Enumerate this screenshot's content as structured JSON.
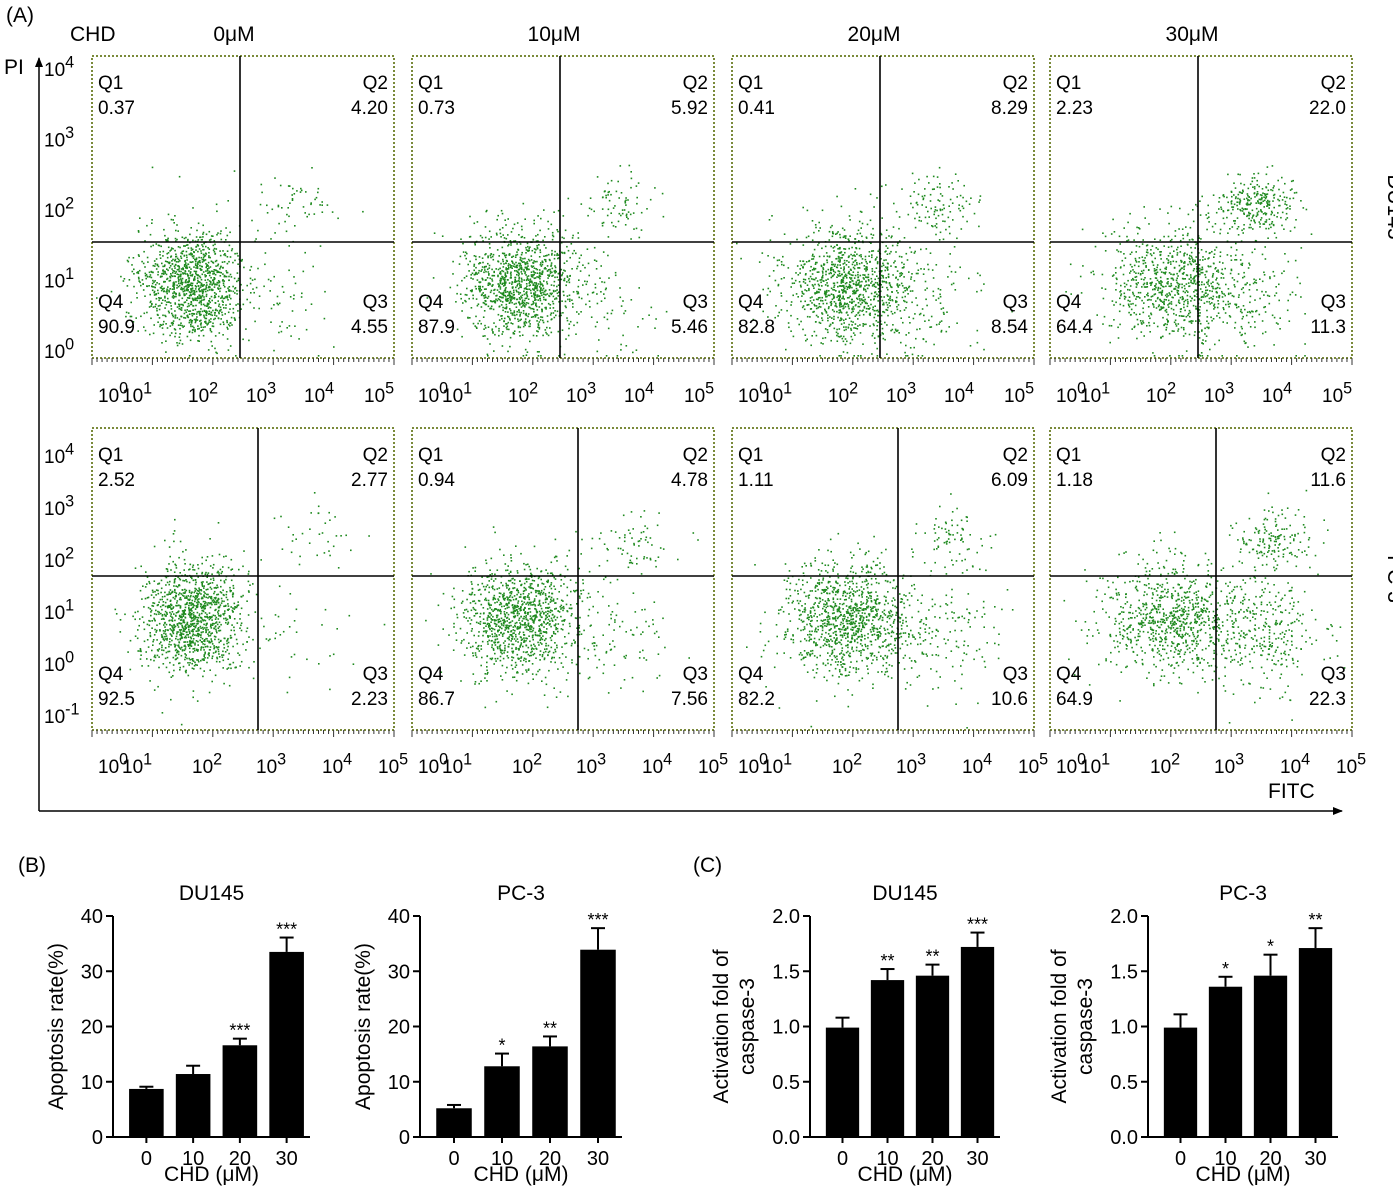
{
  "panel_labels": {
    "A": "(A)",
    "B": "(B)",
    "C": "(C)"
  },
  "flow": {
    "treatment_label": "CHD",
    "y_axis_label": "PI",
    "x_axis_label": "FITC",
    "concentrations": [
      "0μM",
      "10μM",
      "20μM",
      "30μM"
    ],
    "cell_lines": [
      "DU145",
      "PC-3"
    ],
    "quadrant_names": [
      "Q1",
      "Q2",
      "Q3",
      "Q4"
    ],
    "x_ticks": [
      "10^0",
      "10^1",
      "10^2",
      "10^3",
      "10^4",
      "10^5"
    ],
    "y_ticks_du145": [
      "10^4",
      "10^3",
      "10^2",
      "10^1",
      "10^0"
    ],
    "y_ticks_pc3": [
      "10^4",
      "10^3",
      "10^2",
      "10^1",
      "10^0",
      "10^-1"
    ],
    "dot_color": "#1f8a1f",
    "frame_color": "#7a8a3a"
  },
  "chart_data": [
    {
      "type": "scatter",
      "subtype": "flow-cytometry-quadrants",
      "cell_line": "DU145",
      "panels": [
        {
          "concentration": "0μM",
          "Q1": "0.37",
          "Q2": "4.20",
          "Q3": "4.55",
          "Q4": "90.9"
        },
        {
          "concentration": "10μM",
          "Q1": "0.73",
          "Q2": "5.92",
          "Q3": "5.46",
          "Q4": "87.9"
        },
        {
          "concentration": "20μM",
          "Q1": "0.41",
          "Q2": "8.29",
          "Q3": "8.54",
          "Q4": "82.8"
        },
        {
          "concentration": "30μM",
          "Q1": "2.23",
          "Q2": "22.0",
          "Q3": "11.3",
          "Q4": "64.4"
        }
      ]
    },
    {
      "type": "scatter",
      "subtype": "flow-cytometry-quadrants",
      "cell_line": "PC-3",
      "panels": [
        {
          "concentration": "0μM",
          "Q1": "2.52",
          "Q2": "2.77",
          "Q3": "2.23",
          "Q4": "92.5"
        },
        {
          "concentration": "10μM",
          "Q1": "0.94",
          "Q2": "4.78",
          "Q3": "7.56",
          "Q4": "86.7"
        },
        {
          "concentration": "20μM",
          "Q1": "1.11",
          "Q2": "6.09",
          "Q3": "10.6",
          "Q4": "82.2"
        },
        {
          "concentration": "30μM",
          "Q1": "1.18",
          "Q2": "11.6",
          "Q3": "22.3",
          "Q4": "64.9"
        }
      ]
    },
    {
      "type": "bar",
      "panel": "B",
      "title": "DU145",
      "xlabel": "CHD (μM)",
      "ylabel": "Apoptosis rate(%)",
      "categories": [
        "0",
        "10",
        "20",
        "30"
      ],
      "values": [
        8.7,
        11.4,
        16.6,
        33.5
      ],
      "errors": [
        0.4,
        1.5,
        1.2,
        2.6
      ],
      "significance": [
        "",
        "",
        "***",
        "***"
      ],
      "ylim": [
        0,
        40
      ],
      "yticks": [
        "0",
        "10",
        "20",
        "30",
        "40"
      ]
    },
    {
      "type": "bar",
      "panel": "B",
      "title": "PC-3",
      "xlabel": "CHD (μM)",
      "ylabel": "Apoptosis rate(%)",
      "categories": [
        "0",
        "10",
        "20",
        "30"
      ],
      "values": [
        5.2,
        12.8,
        16.4,
        33.9
      ],
      "errors": [
        0.6,
        2.3,
        1.8,
        3.9
      ],
      "significance": [
        "",
        "*",
        "**",
        "***"
      ],
      "ylim": [
        0,
        40
      ],
      "yticks": [
        "0",
        "10",
        "20",
        "30",
        "40"
      ]
    },
    {
      "type": "bar",
      "panel": "C",
      "title": "DU145",
      "xlabel": "CHD (μM)",
      "ylabel": "Activation fold of caspase-3",
      "ylabel_lines": [
        "Activation fold of",
        "caspase-3"
      ],
      "categories": [
        "0",
        "10",
        "20",
        "30"
      ],
      "values": [
        0.99,
        1.42,
        1.46,
        1.72
      ],
      "errors": [
        0.09,
        0.1,
        0.1,
        0.13
      ],
      "significance": [
        "",
        "**",
        "**",
        "***"
      ],
      "ylim": [
        0,
        2.0
      ],
      "yticks": [
        "0.0",
        "0.5",
        "1.0",
        "1.5",
        "2.0"
      ]
    },
    {
      "type": "bar",
      "panel": "C",
      "title": "PC-3",
      "xlabel": "CHD (μM)",
      "ylabel": "Activation fold of caspase-3",
      "ylabel_lines": [
        "Activation fold of",
        "caspase-3"
      ],
      "categories": [
        "0",
        "10",
        "20",
        "30"
      ],
      "values": [
        0.99,
        1.36,
        1.46,
        1.71
      ],
      "errors": [
        0.12,
        0.09,
        0.19,
        0.18
      ],
      "significance": [
        "",
        "*",
        "*",
        "**"
      ],
      "ylim": [
        0,
        2.0
      ],
      "yticks": [
        "0.0",
        "0.5",
        "1.0",
        "1.5",
        "2.0"
      ]
    }
  ]
}
